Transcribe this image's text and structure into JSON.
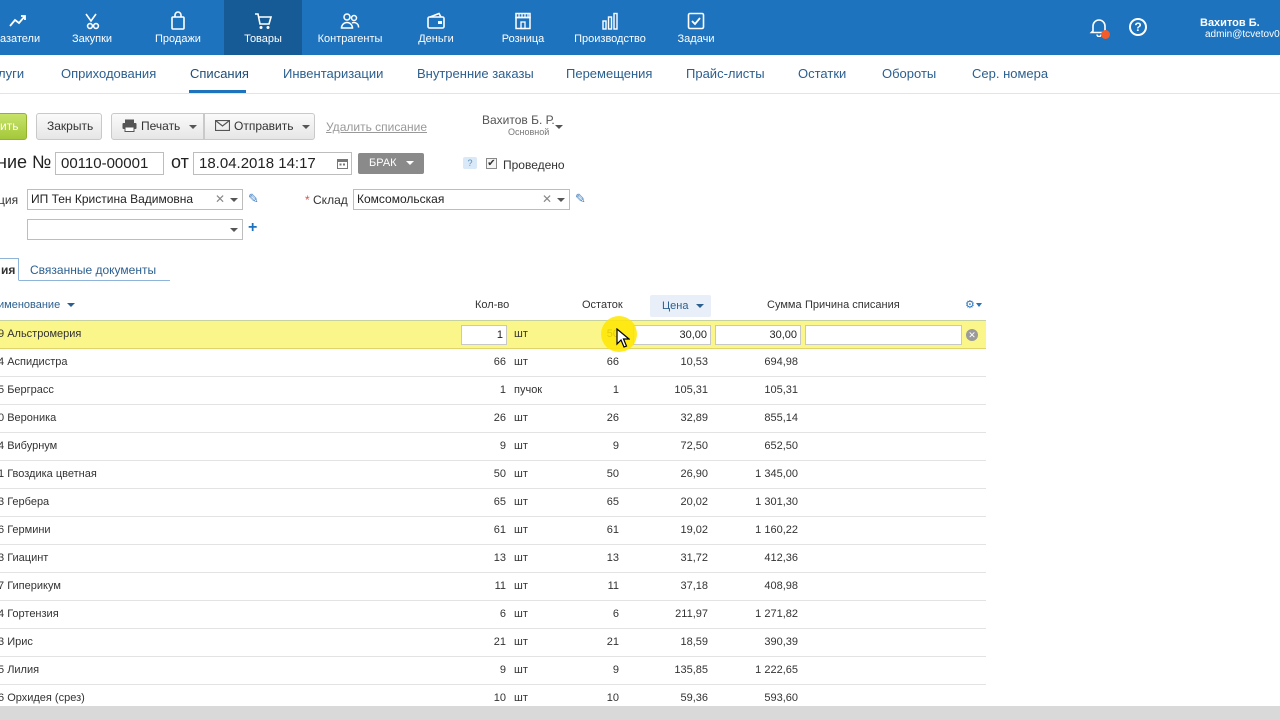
{
  "nav": {
    "items": [
      {
        "label": "зазатели",
        "icon": "chart-line-icon"
      },
      {
        "label": "Закупки",
        "icon": "purchases-icon"
      },
      {
        "label": "Продажи",
        "icon": "shopping-bag-icon"
      },
      {
        "label": "Товары",
        "icon": "cart-icon"
      },
      {
        "label": "Контрагенты",
        "icon": "people-icon"
      },
      {
        "label": "Деньги",
        "icon": "wallet-icon"
      },
      {
        "label": "Розница",
        "icon": "store-icon"
      },
      {
        "label": "Производство",
        "icon": "bar-chart-icon"
      },
      {
        "label": "Задачи",
        "icon": "checkbox-icon"
      }
    ],
    "active": "Товары",
    "user_name": "Вахитов Б.",
    "user_email": "admin@tcvetov0",
    "help_label": "?",
    "notification_color": "#f25b2a"
  },
  "subnav": {
    "items": [
      "луги",
      "Оприходования",
      "Списания",
      "Инвентаризации",
      "Внутренние заказы",
      "Перемещения",
      "Прайс-листы",
      "Остатки",
      "Обороты",
      "Сер. номера"
    ],
    "active": "Списания"
  },
  "toolbar": {
    "save_label": "ить",
    "close_label": "Закрыть",
    "print_label": "Печать",
    "send_label": "Отправить",
    "delete_label": "Удалить списание",
    "owner_name": "Вахитов Б. Р.",
    "owner_group": "Основной"
  },
  "document": {
    "title_prefix": "ние №",
    "number": "00110-00001",
    "date_prefix": "от",
    "date": "18.04.2018 14:17",
    "status": "БРАК",
    "help_label": "?",
    "posted_label": "Проведено",
    "posted_check": "✔",
    "org_label": "ция",
    "org_value": "ИП Тен Кристина Вадимовна",
    "warehouse_required": "*",
    "warehouse_label": "Склад",
    "warehouse_value": "Комсомольская",
    "project_value": ""
  },
  "tabs": {
    "items": [
      "ия",
      "Связанные документы"
    ]
  },
  "table": {
    "headers": {
      "name": "именование",
      "qty": "Кол-во",
      "rest": "Остаток",
      "price": "Цена",
      "sum": "Сумма",
      "reason": "Причина списания"
    },
    "rows": [
      {
        "num": "9",
        "name": "Альстромерия",
        "qty": "1",
        "unit": "шт",
        "rest": "50",
        "price": "30,00",
        "sum": "30,00"
      },
      {
        "num": "4",
        "name": "Аспидистра",
        "qty": "66",
        "unit": "шт",
        "rest": "66",
        "price": "10,53",
        "sum": "694,98"
      },
      {
        "num": "5",
        "name": "Берграсс",
        "qty": "1",
        "unit": "пучок",
        "rest": "1",
        "price": "105,31",
        "sum": "105,31"
      },
      {
        "num": "0",
        "name": "Вероника",
        "qty": "26",
        "unit": "шт",
        "rest": "26",
        "price": "32,89",
        "sum": "855,14"
      },
      {
        "num": "4",
        "name": "Вибурнум",
        "qty": "9",
        "unit": "шт",
        "rest": "9",
        "price": "72,50",
        "sum": "652,50"
      },
      {
        "num": "1",
        "name": "Гвоздика цветная",
        "qty": "50",
        "unit": "шт",
        "rest": "50",
        "price": "26,90",
        "sum": "1 345,00"
      },
      {
        "num": "3",
        "name": "Гербера",
        "qty": "65",
        "unit": "шт",
        "rest": "65",
        "price": "20,02",
        "sum": "1 301,30"
      },
      {
        "num": "6",
        "name": "Гермини",
        "qty": "61",
        "unit": "шт",
        "rest": "61",
        "price": "19,02",
        "sum": "1 160,22"
      },
      {
        "num": "3",
        "name": "Гиацинт",
        "qty": "13",
        "unit": "шт",
        "rest": "13",
        "price": "31,72",
        "sum": "412,36"
      },
      {
        "num": "7",
        "name": "Гиперикум",
        "qty": "11",
        "unit": "шт",
        "rest": "11",
        "price": "37,18",
        "sum": "408,98"
      },
      {
        "num": "4",
        "name": "Гортензия",
        "qty": "6",
        "unit": "шт",
        "rest": "6",
        "price": "211,97",
        "sum": "1 271,82"
      },
      {
        "num": "3",
        "name": "Ирис",
        "qty": "21",
        "unit": "шт",
        "rest": "21",
        "price": "18,59",
        "sum": "390,39"
      },
      {
        "num": "5",
        "name": "Лилия",
        "qty": "9",
        "unit": "шт",
        "rest": "9",
        "price": "135,85",
        "sum": "1 222,65"
      },
      {
        "num": "6",
        "name": "Орхидея (срез)",
        "qty": "10",
        "unit": "шт",
        "rest": "10",
        "price": "59,36",
        "sum": "593,60"
      }
    ]
  },
  "colors": {
    "nav_bg": "#1e73be",
    "selected_row": "#fbf68a",
    "save_button": "#a4c83a"
  }
}
